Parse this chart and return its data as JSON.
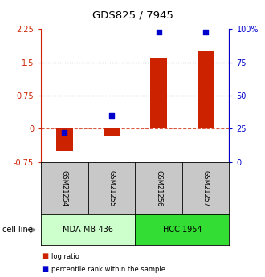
{
  "title": "GDS825 / 7945",
  "samples": [
    "GSM21254",
    "GSM21255",
    "GSM21256",
    "GSM21257"
  ],
  "log_ratios": [
    -0.5,
    -0.15,
    1.6,
    1.75
  ],
  "percentile_ranks": [
    22,
    35,
    98,
    98
  ],
  "ylim_left": [
    -0.75,
    2.25
  ],
  "ylim_right": [
    0,
    100
  ],
  "yticks_left": [
    -0.75,
    0,
    0.75,
    1.5,
    2.25
  ],
  "yticks_right": [
    0,
    25,
    50,
    75,
    100
  ],
  "hlines_dotted": [
    0.75,
    1.5
  ],
  "hline_dashed_color": "#cc2200",
  "cell_lines": [
    {
      "label": "MDA-MB-436",
      "samples": [
        0,
        1
      ],
      "color": "#ccffcc"
    },
    {
      "label": "HCC 1954",
      "samples": [
        2,
        3
      ],
      "color": "#33dd33"
    }
  ],
  "bar_color": "#cc2200",
  "dot_color": "#0000cc",
  "bar_width": 0.35,
  "dot_size": 25,
  "legend_items": [
    {
      "label": "log ratio",
      "color": "#cc2200"
    },
    {
      "label": "percentile rank within the sample",
      "color": "#0000cc"
    }
  ],
  "cell_line_label": "cell line",
  "sample_box_color": "#c8c8c8",
  "background_color": "#ffffff"
}
